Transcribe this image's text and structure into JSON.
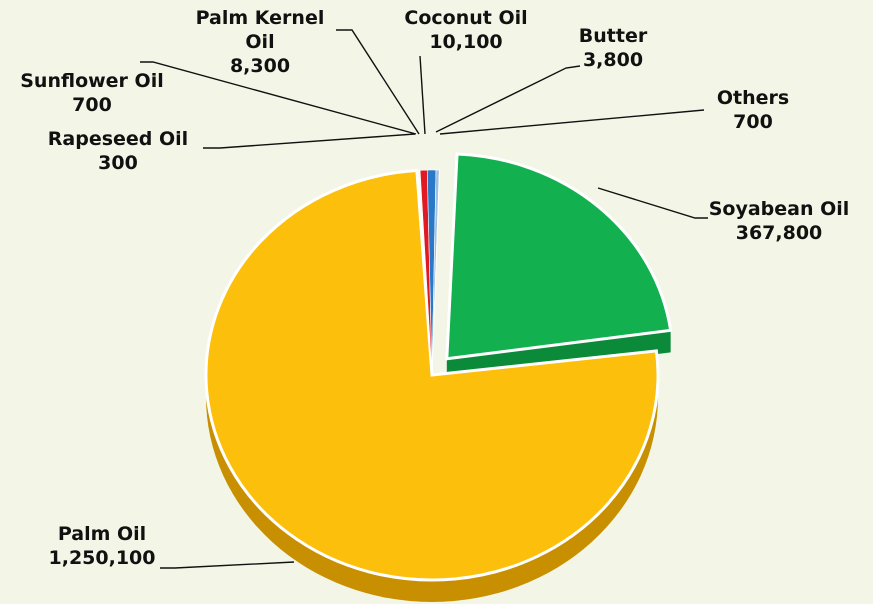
{
  "chart_data": {
    "type": "pie",
    "title": "",
    "slices": [
      {
        "name": "Soyabean Oil",
        "value": 367800,
        "value_label": "367,800",
        "color": "#12b04f",
        "side_color": "#0b8a3a",
        "exploded": true
      },
      {
        "name": "Palm Oil",
        "value": 1250100,
        "value_label": "1,250,100",
        "color": "#fbbf0c",
        "side_color": "#c88f00",
        "exploded": false
      },
      {
        "name": "Rapeseed Oil",
        "value": 300,
        "value_label": "300",
        "color": "#f0a030",
        "side_color": "#b87410",
        "exploded": false
      },
      {
        "name": "Sunflower Oil",
        "value": 700,
        "value_label": "700",
        "color": "#6b3aa8",
        "side_color": "#4a2478",
        "exploded": false
      },
      {
        "name": "Palm Kernel Oil",
        "value": 8300,
        "value_label": "8,300",
        "color": "#e01a22",
        "side_color": "#9a0f14",
        "exploded": false
      },
      {
        "name": "Coconut Oil",
        "value": 10100,
        "value_label": "10,100",
        "color": "#2a78c8",
        "side_color": "#1a5292",
        "exploded": false
      },
      {
        "name": "Butter",
        "value": 3800,
        "value_label": "3,800",
        "color": "#9ec0e0",
        "side_color": "#6f90b0",
        "exploded": false
      },
      {
        "name": "Others",
        "value": 700,
        "value_label": "700",
        "color": "#c8c0a0",
        "side_color": "#908870",
        "exploded": false
      }
    ],
    "legend": "none"
  },
  "labels": [
    {
      "name_lines": [
        "Palm Kernel",
        "Oil"
      ],
      "value": "8,300"
    },
    {
      "name_lines": [
        "Coconut Oil"
      ],
      "value": "10,100"
    },
    {
      "name_lines": [
        "Butter"
      ],
      "value": "3,800"
    },
    {
      "name_lines": [
        "Others"
      ],
      "value": "700"
    },
    {
      "name_lines": [
        "Sunflower Oil"
      ],
      "value": "700"
    },
    {
      "name_lines": [
        "Rapeseed Oil"
      ],
      "value": "300"
    },
    {
      "name_lines": [
        "Soyabean Oil"
      ],
      "value": "367,800"
    },
    {
      "name_lines": [
        "Palm Oil"
      ],
      "value": "1,250,100"
    }
  ]
}
